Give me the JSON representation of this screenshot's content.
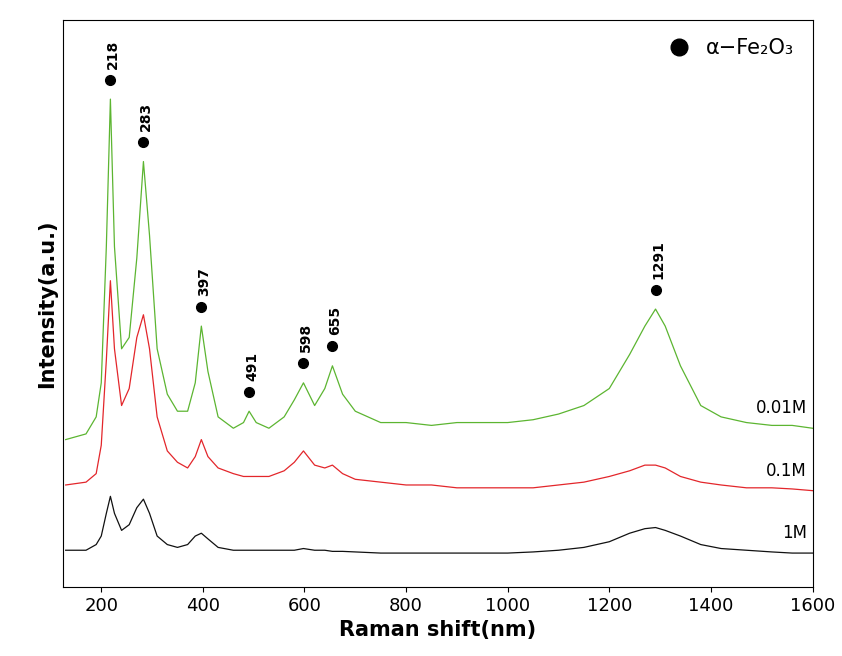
{
  "chart_data": {
    "type": "line",
    "x_label": "Raman shift(nm)",
    "y_label": "Intensity(a.u.)",
    "xlim": [
      125,
      1600
    ],
    "xticks": [
      200,
      400,
      600,
      800,
      1000,
      1200,
      1400,
      1600
    ],
    "ylim": [
      0,
      100
    ],
    "tick_labels": "x",
    "legend": "upper right",
    "x": [
      130,
      170,
      190,
      200,
      210,
      218,
      226,
      240,
      255,
      270,
      283,
      295,
      310,
      330,
      350,
      370,
      385,
      397,
      410,
      430,
      460,
      480,
      491,
      505,
      530,
      560,
      580,
      598,
      620,
      640,
      655,
      675,
      700,
      750,
      800,
      850,
      900,
      950,
      1000,
      1050,
      1100,
      1150,
      1200,
      1240,
      1270,
      1291,
      1310,
      1340,
      1380,
      1420,
      1470,
      1520,
      1560,
      1600
    ],
    "series": [
      {
        "name": "0.01M",
        "color": "#5cb531",
        "values": [
          26,
          27,
          30,
          36,
          60,
          86,
          60,
          42,
          44,
          58,
          75,
          62,
          42,
          34,
          31,
          31,
          36,
          46,
          38,
          30,
          28,
          29,
          31,
          29,
          28,
          30,
          33,
          36,
          32,
          35,
          39,
          34,
          31,
          29,
          29,
          28.5,
          29,
          29,
          29,
          29.5,
          30.5,
          32,
          35,
          41,
          46,
          49,
          46,
          39,
          32,
          30,
          29,
          28.5,
          28.5,
          28
        ]
      },
      {
        "name": "0.1M",
        "color": "#e3262b",
        "values": [
          18,
          18.5,
          20,
          25,
          40,
          54,
          42,
          32,
          35,
          44,
          48,
          42,
          30,
          24,
          22,
          21,
          23,
          26,
          23,
          21,
          20,
          19.5,
          19.5,
          19.5,
          19.5,
          20.5,
          22,
          24,
          21.5,
          21,
          21.5,
          20,
          19,
          18.5,
          18,
          18,
          17.5,
          17.5,
          17.5,
          17.5,
          18,
          18.5,
          19.5,
          20.5,
          21.5,
          21.5,
          21,
          19.5,
          18.5,
          18,
          17.5,
          17.5,
          17.3,
          17
        ]
      },
      {
        "name": "1M",
        "color": "#111111",
        "values": [
          6.5,
          6.5,
          7.5,
          9,
          13,
          16,
          13,
          10,
          11,
          14,
          15.5,
          13,
          9,
          7.5,
          7,
          7.5,
          9,
          9.5,
          8.5,
          7,
          6.5,
          6.5,
          6.5,
          6.5,
          6.5,
          6.5,
          6.5,
          6.8,
          6.5,
          6.5,
          6.3,
          6.3,
          6.2,
          6,
          6,
          6,
          6,
          6,
          6,
          6.2,
          6.5,
          7,
          8,
          9.5,
          10.3,
          10.5,
          10,
          9,
          7.5,
          6.8,
          6.5,
          6.2,
          6,
          6
        ]
      }
    ],
    "peaks": {
      "name": "α−Fe₂O₃",
      "color": "#000000",
      "marker": "o",
      "x": [
        218,
        283,
        397,
        491,
        598,
        655,
        1291
      ]
    }
  }
}
